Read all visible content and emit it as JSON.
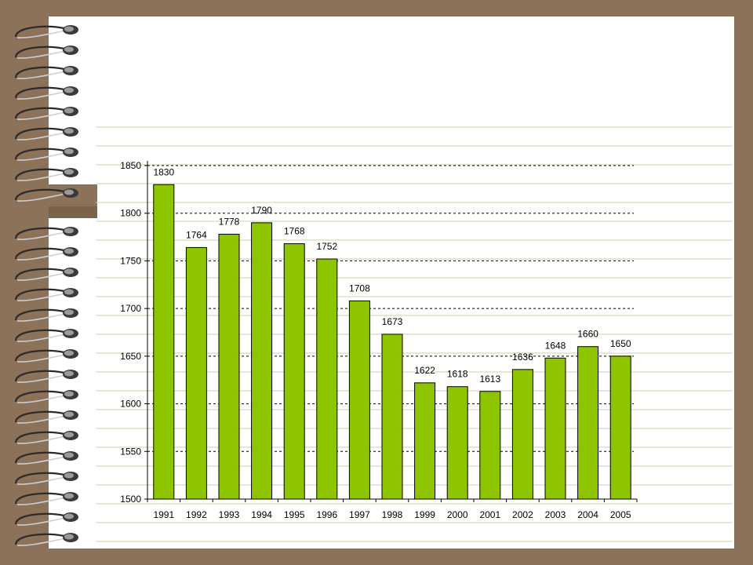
{
  "slide": {
    "title": "",
    "colors": {
      "background": "#8b7258",
      "paper": "#ffffff",
      "ruled_lines": "#c9d3a8",
      "bar": "#8fc400",
      "bar_outline": "#000000"
    }
  },
  "chart_data": {
    "type": "bar",
    "title": "",
    "xlabel": "",
    "ylabel": "",
    "categories": [
      "1991",
      "1992",
      "1993",
      "1994",
      "1995",
      "1996",
      "1997",
      "1998",
      "1999",
      "2000",
      "2001",
      "2002",
      "2003",
      "2004",
      "2005"
    ],
    "values": [
      1830,
      1764,
      1778,
      1790,
      1768,
      1752,
      1708,
      1673,
      1622,
      1618,
      1613,
      1636,
      1648,
      1660,
      1650
    ],
    "ylim": [
      1500,
      1850
    ],
    "yticks": [
      1500,
      1550,
      1600,
      1650,
      1700,
      1750,
      1800,
      1850
    ],
    "grid": "dashed-horizontal",
    "legend": "none"
  }
}
